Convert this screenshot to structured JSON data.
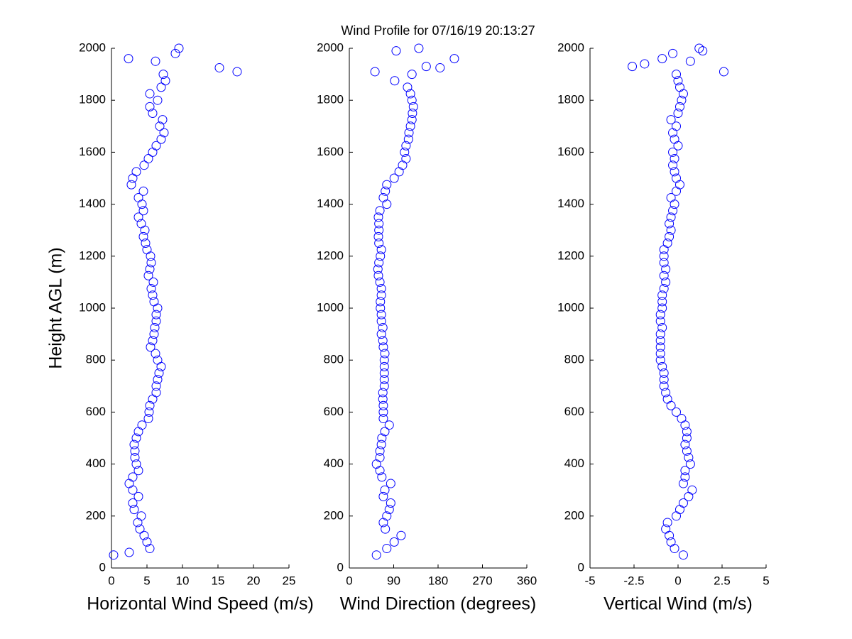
{
  "chart_data": [
    {
      "type": "scatter",
      "xlabel": "Horizontal Wind Speed (m/s)",
      "ylabel": "Height AGL (m)",
      "color": "#0000ff",
      "xlim": [
        0,
        25
      ],
      "xticks": [
        0,
        5,
        10,
        15,
        20,
        25
      ],
      "ylim": [
        0,
        2000
      ],
      "yticks": [
        0,
        200,
        400,
        600,
        800,
        1000,
        1200,
        1400,
        1600,
        1800,
        2000
      ],
      "x": [
        0.3,
        5.4,
        5.0,
        4.6,
        4.0,
        3.7,
        4.2,
        3.2,
        3.0,
        3.8,
        3.0,
        2.5,
        3.0,
        3.8,
        3.5,
        3.3,
        3.3,
        3.2,
        3.5,
        3.8,
        4.3,
        5.2,
        5.3,
        5.4,
        5.8,
        6.3,
        6.3,
        6.5,
        6.7,
        7.0,
        6.5,
        6.2,
        5.5,
        5.8,
        6.0,
        6.1,
        6.3,
        6.3,
        6.5,
        6.0,
        5.8,
        5.6,
        5.9,
        5.2,
        5.4,
        5.6,
        5.5,
        5.0,
        4.8,
        4.5,
        4.7,
        4.2,
        3.8,
        4.5,
        4.3,
        3.8,
        4.5,
        2.8,
        3.0,
        3.5,
        4.6,
        5.2,
        5.8,
        6.3,
        7.0,
        7.4,
        6.8,
        7.2,
        5.8,
        5.4,
        6.5,
        5.4,
        7.0,
        7.6,
        7.3,
        15.2,
        6.2,
        2.4,
        9.5,
        17.7,
        2.5,
        9.0
      ],
      "y": [
        50,
        75,
        100,
        125,
        150,
        175,
        200,
        225,
        250,
        275,
        300,
        325,
        350,
        375,
        400,
        425,
        450,
        475,
        500,
        525,
        550,
        575,
        600,
        625,
        650,
        675,
        700,
        725,
        750,
        775,
        800,
        825,
        850,
        875,
        900,
        925,
        950,
        975,
        1000,
        1025,
        1050,
        1075,
        1100,
        1125,
        1150,
        1175,
        1200,
        1225,
        1250,
        1275,
        1300,
        1325,
        1350,
        1375,
        1400,
        1425,
        1450,
        1475,
        1500,
        1525,
        1550,
        1575,
        1600,
        1625,
        1650,
        1675,
        1700,
        1725,
        1750,
        1775,
        1800,
        1825,
        1850,
        1875,
        1900,
        1925,
        1950,
        1960,
        2000,
        1910,
        60,
        1980
      ]
    },
    {
      "type": "scatter",
      "title": "Wind Profile for  07/16/19 20:13:27",
      "xlabel": "Wind Direction (degrees)",
      "color": "#0000ff",
      "xlim": [
        0,
        360
      ],
      "xticks": [
        0,
        90,
        180,
        270,
        360
      ],
      "ylim": [
        0,
        2000
      ],
      "yticks": [
        0,
        200,
        400,
        600,
        800,
        1000,
        1200,
        1400,
        1600,
        1800,
        2000
      ],
      "x": [
        55,
        76,
        91,
        105,
        73,
        69,
        76,
        81,
        84,
        69,
        72,
        84,
        66,
        62,
        55,
        62,
        62,
        65,
        66,
        72,
        81,
        69,
        69,
        69,
        68,
        68,
        71,
        71,
        71,
        71,
        71,
        72,
        69,
        68,
        65,
        68,
        65,
        65,
        63,
        63,
        65,
        65,
        62,
        59,
        58,
        60,
        63,
        65,
        60,
        59,
        60,
        60,
        59,
        62,
        76,
        69,
        73,
        76,
        91,
        101,
        108,
        115,
        112,
        115,
        120,
        121,
        124,
        127,
        128,
        130,
        127,
        124,
        118,
        92,
        127,
        184,
        156,
        213,
        141,
        52,
        95
      ],
      "y": [
        50,
        75,
        100,
        125,
        150,
        175,
        200,
        225,
        250,
        275,
        300,
        325,
        350,
        375,
        400,
        425,
        450,
        475,
        500,
        525,
        550,
        575,
        600,
        625,
        650,
        675,
        700,
        725,
        750,
        775,
        800,
        825,
        850,
        875,
        900,
        925,
        950,
        975,
        1000,
        1025,
        1050,
        1075,
        1100,
        1125,
        1150,
        1175,
        1200,
        1225,
        1250,
        1275,
        1300,
        1325,
        1350,
        1375,
        1400,
        1425,
        1450,
        1475,
        1500,
        1525,
        1550,
        1575,
        1600,
        1625,
        1650,
        1675,
        1700,
        1725,
        1750,
        1775,
        1800,
        1825,
        1850,
        1875,
        1900,
        1925,
        1930,
        1960,
        2000,
        1910,
        1990
      ]
    },
    {
      "type": "scatter",
      "xlabel": "Vertical Wind (m/s)",
      "color": "#0000ff",
      "xlim": [
        -5,
        5
      ],
      "xticks": [
        -5,
        -2.5,
        0,
        2.5,
        5
      ],
      "ylim": [
        0,
        2000
      ],
      "yticks": [
        0,
        200,
        400,
        600,
        800,
        1000,
        1200,
        1400,
        1600,
        1800,
        2000
      ],
      "x": [
        0.3,
        -0.2,
        -0.4,
        -0.5,
        -0.7,
        -0.6,
        -0.1,
        0.1,
        0.3,
        0.6,
        0.8,
        0.3,
        0.4,
        0.4,
        0.7,
        0.6,
        0.5,
        0.4,
        0.5,
        0.5,
        0.4,
        0.2,
        -0.1,
        -0.4,
        -0.6,
        -0.7,
        -0.8,
        -0.8,
        -0.8,
        -0.9,
        -1.0,
        -1.0,
        -1.0,
        -1.0,
        -1.0,
        -0.9,
        -1.0,
        -1.0,
        -0.9,
        -0.9,
        -0.9,
        -0.8,
        -0.7,
        -0.8,
        -0.7,
        -0.8,
        -0.8,
        -0.8,
        -0.6,
        -0.5,
        -0.4,
        -0.5,
        -0.4,
        -0.3,
        -0.2,
        -0.4,
        -0.1,
        0.1,
        -0.1,
        -0.2,
        -0.3,
        -0.2,
        -0.3,
        0,
        -0.2,
        -0.3,
        -0.1,
        -0.4,
        0,
        0.1,
        0.2,
        0.3,
        0.1,
        0,
        -0.1,
        -2.6,
        0.7,
        -0.3,
        1.2,
        2.6,
        -1.9,
        -0.9,
        1.4
      ],
      "y": [
        50,
        75,
        100,
        125,
        150,
        175,
        200,
        225,
        250,
        275,
        300,
        325,
        350,
        375,
        400,
        425,
        450,
        475,
        500,
        525,
        550,
        575,
        600,
        625,
        650,
        675,
        700,
        725,
        750,
        775,
        800,
        825,
        850,
        875,
        900,
        925,
        950,
        975,
        1000,
        1025,
        1050,
        1075,
        1100,
        1125,
        1150,
        1175,
        1200,
        1225,
        1250,
        1275,
        1300,
        1325,
        1350,
        1375,
        1400,
        1425,
        1450,
        1475,
        1500,
        1525,
        1550,
        1575,
        1600,
        1625,
        1650,
        1675,
        1700,
        1725,
        1750,
        1775,
        1800,
        1825,
        1850,
        1875,
        1900,
        1930,
        1950,
        1980,
        2000,
        1910,
        1940,
        1960,
        1990
      ]
    }
  ]
}
